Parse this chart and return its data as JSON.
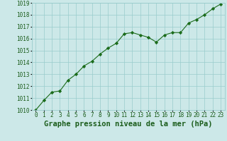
{
  "x": [
    0,
    1,
    2,
    3,
    4,
    5,
    6,
    7,
    8,
    9,
    10,
    11,
    12,
    13,
    14,
    15,
    16,
    17,
    18,
    19,
    20,
    21,
    22,
    23
  ],
  "y": [
    1010.0,
    1010.8,
    1011.5,
    1011.6,
    1012.5,
    1013.0,
    1013.7,
    1014.1,
    1014.7,
    1015.2,
    1015.6,
    1016.4,
    1016.5,
    1016.3,
    1016.1,
    1015.7,
    1016.3,
    1016.5,
    1016.5,
    1017.3,
    1017.6,
    1018.0,
    1018.5,
    1018.9
  ],
  "ylim": [
    1010,
    1019
  ],
  "yticks": [
    1010,
    1011,
    1012,
    1013,
    1014,
    1015,
    1016,
    1017,
    1018,
    1019
  ],
  "xticks": [
    0,
    1,
    2,
    3,
    4,
    5,
    6,
    7,
    8,
    9,
    10,
    11,
    12,
    13,
    14,
    15,
    16,
    17,
    18,
    19,
    20,
    21,
    22,
    23
  ],
  "xlabel": "Graphe pression niveau de la mer (hPa)",
  "line_color": "#1a6b1a",
  "marker": "D",
  "marker_size": 2.2,
  "bg_color": "#cce8e8",
  "grid_color": "#99cccc",
  "text_color": "#1a5c1a",
  "xlabel_fontsize": 7.5,
  "tick_fontsize": 5.5
}
